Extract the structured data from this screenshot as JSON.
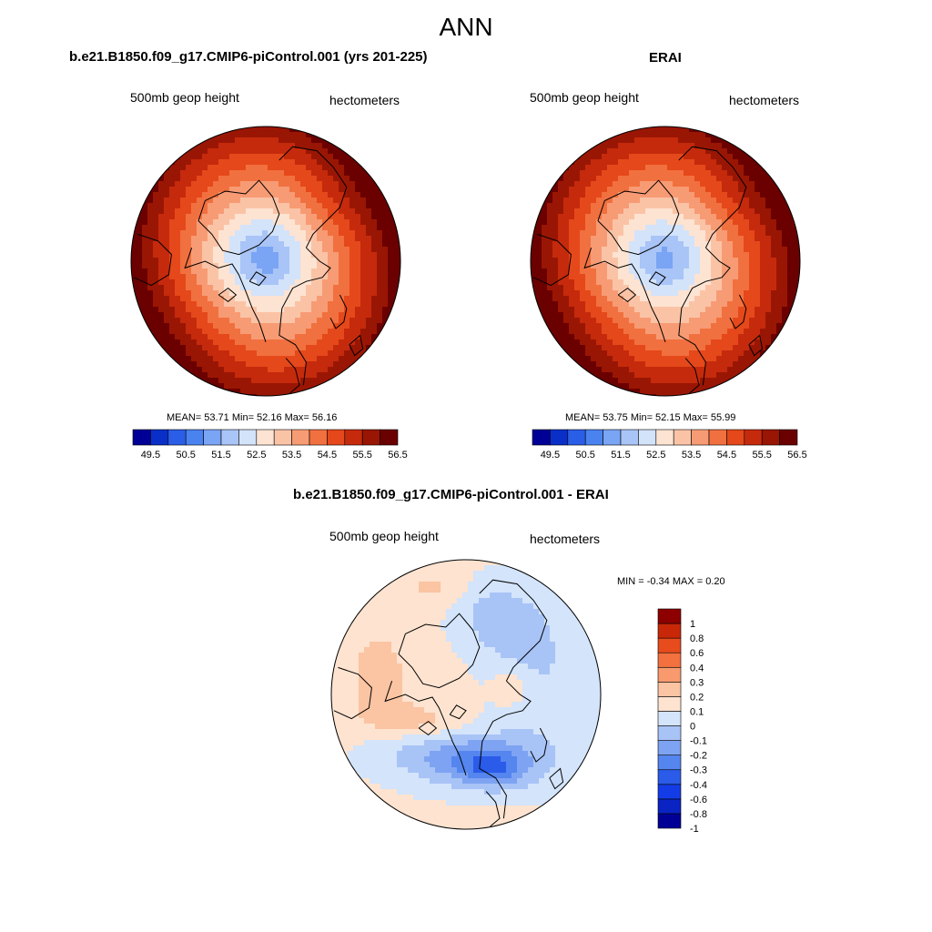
{
  "page": {
    "title": "ANN"
  },
  "colors": {
    "abs_scale": [
      "#000096",
      "#0a2fc8",
      "#2b5ee6",
      "#4a82f0",
      "#7aa4f4",
      "#a9c4f6",
      "#d3e3fa",
      "#fde3d2",
      "#fbc3a6",
      "#f79b74",
      "#f1703f",
      "#e5481a",
      "#c52a0c",
      "#9a1604",
      "#6b0000"
    ],
    "diff_scale": [
      "#000096",
      "#0a23c3",
      "#143ce6",
      "#2a5be9",
      "#5585ee",
      "#7ea3f2",
      "#a8c3f6",
      "#d3e4fb",
      "#fde3d0",
      "#fbc4a2",
      "#f89a6e",
      "#f3703f",
      "#e84b1c",
      "#c82808",
      "#8e0000"
    ],
    "coastline": "#000000"
  },
  "panels": {
    "model": {
      "title": "b.e21.B1850.f09_g17.CMIP6-piControl.001 (yrs 201-225)",
      "left_label": "500mb geop height",
      "right_label": "hectometers",
      "stats": "MEAN=  53.71  Min=  52.16  Max=  56.16"
    },
    "obs": {
      "title": "ERAI",
      "left_label": "500mb geop height",
      "right_label": "hectometers",
      "stats": "MEAN=  53.75  Min=  52.15  Max=  55.99"
    },
    "diff": {
      "title": "b.e21.B1850.f09_g17.CMIP6-piControl.001 - ERAI",
      "left_label": "500mb geop height",
      "right_label": "hectometers",
      "stats": "MIN =  -0.34 MAX =   0.20"
    }
  },
  "chart_data": [
    {
      "type": "heatmap",
      "panel": "model",
      "title": "b.e21.B1850.f09_g17.CMIP6-piControl.001 (yrs 201-225)",
      "variable": "500mb geop height",
      "units": "hectometers",
      "projection": "north polar stereographic",
      "mean": 53.71,
      "min": 52.16,
      "max": 56.16,
      "levels": [
        49.5,
        50,
        50.5,
        51,
        51.5,
        52,
        52.5,
        53,
        53.5,
        54,
        54.5,
        55,
        55.5,
        56,
        56.5
      ],
      "colorbar_tick_labels": [
        "49.5",
        "50.5",
        "51.5",
        "52.5",
        "53.5",
        "54.5",
        "55.5",
        "56.5"
      ]
    },
    {
      "type": "heatmap",
      "panel": "obs",
      "title": "ERAI",
      "variable": "500mb geop height",
      "units": "hectometers",
      "projection": "north polar stereographic",
      "mean": 53.75,
      "min": 52.15,
      "max": 55.99,
      "levels": [
        49.5,
        50,
        50.5,
        51,
        51.5,
        52,
        52.5,
        53,
        53.5,
        54,
        54.5,
        55,
        55.5,
        56,
        56.5
      ],
      "colorbar_tick_labels": [
        "49.5",
        "50.5",
        "51.5",
        "52.5",
        "53.5",
        "54.5",
        "55.5",
        "56.5"
      ]
    },
    {
      "type": "heatmap",
      "panel": "diff",
      "title": "b.e21.B1850.f09_g17.CMIP6-piControl.001 - ERAI",
      "variable": "500mb geop height",
      "units": "hectometers",
      "projection": "north polar stereographic",
      "min": -0.34,
      "max": 0.2,
      "levels": [
        -1,
        -0.8,
        -0.6,
        -0.4,
        -0.3,
        -0.2,
        -0.1,
        0,
        0.1,
        0.2,
        0.3,
        0.4,
        0.6,
        0.8,
        1
      ],
      "colorbar_tick_labels": [
        "1",
        "0.8",
        "0.6",
        "0.4",
        "0.3",
        "0.2",
        "0.1",
        "0",
        "-0.1",
        "-0.2",
        "-0.3",
        "-0.4",
        "-0.6",
        "-0.8",
        "-1"
      ]
    }
  ]
}
